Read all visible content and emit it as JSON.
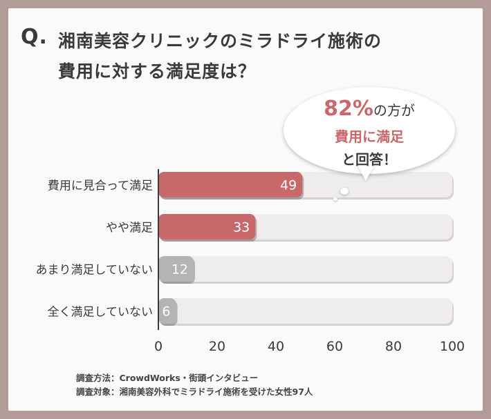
{
  "question": {
    "prefix": "Q.",
    "line1": "湘南美容クリニックのミラドライ施術の",
    "line2": "費用に対する満足度は？"
  },
  "callout": {
    "percent": "82%",
    "line1_rest": "の方が",
    "line2": "費用に満足",
    "line3": "と回答！"
  },
  "notes": {
    "method": "調査方法：CrowdWorks・街頭インタビュー",
    "target": "調査対象：湘南美容外科でミラドライ施術を受けた女性97人"
  },
  "colors": {
    "highlight": "#c9686b",
    "muted": "#b5b3b4",
    "track": "#efecec"
  },
  "chart_data": {
    "type": "bar",
    "orientation": "horizontal",
    "categories": [
      "費用に見合って満足",
      "やや満足",
      "あまり満足していない",
      "全く満足していない"
    ],
    "values": [
      49,
      33,
      12,
      6
    ],
    "bar_colors": [
      "#c9686b",
      "#c9686b",
      "#b5b3b4",
      "#b5b3b4"
    ],
    "xlim": [
      0,
      100
    ],
    "xticks": [
      0,
      20,
      40,
      60,
      80,
      100
    ],
    "grid": false
  }
}
